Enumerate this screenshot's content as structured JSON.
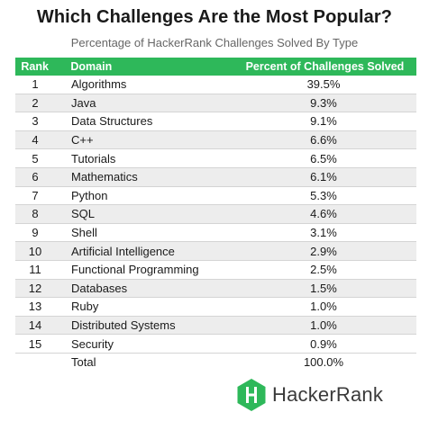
{
  "header": {
    "title": "Which Challenges Are the Most Popular?",
    "subtitle": "Percentage of HackerRank Challenges Solved  By Type"
  },
  "table": {
    "columns": [
      "Rank",
      "Domain",
      "Percent of Challenges Solved"
    ],
    "total_label": "Total",
    "total_value": "100.0%"
  },
  "brand": {
    "name": "HackerRank",
    "logo_color": "#2eb85a"
  },
  "colors": {
    "header_bg": "#2eb85a",
    "alt_row_bg": "#ededed"
  },
  "chart_data": {
    "type": "table",
    "title": "Which Challenges Are the Most Popular?",
    "subtitle": "Percentage of HackerRank Challenges Solved  By Type",
    "columns": [
      "Rank",
      "Domain",
      "Percent of Challenges Solved"
    ],
    "rows": [
      {
        "rank": "1",
        "domain": "Algorithms",
        "percent": "39.5%"
      },
      {
        "rank": "2",
        "domain": "Java",
        "percent": "9.3%"
      },
      {
        "rank": "3",
        "domain": "Data Structures",
        "percent": "9.1%"
      },
      {
        "rank": "4",
        "domain": "C++",
        "percent": "6.6%"
      },
      {
        "rank": "5",
        "domain": "Tutorials",
        "percent": "6.5%"
      },
      {
        "rank": "6",
        "domain": "Mathematics",
        "percent": "6.1%"
      },
      {
        "rank": "7",
        "domain": "Python",
        "percent": "5.3%"
      },
      {
        "rank": "8",
        "domain": "SQL",
        "percent": "4.6%"
      },
      {
        "rank": "9",
        "domain": "Shell",
        "percent": "3.1%"
      },
      {
        "rank": "10",
        "domain": "Artificial Intelligence",
        "percent": "2.9%"
      },
      {
        "rank": "11",
        "domain": "Functional Programming",
        "percent": "2.5%"
      },
      {
        "rank": "12",
        "domain": "Databases",
        "percent": "1.5%"
      },
      {
        "rank": "13",
        "domain": "Ruby",
        "percent": "1.0%"
      },
      {
        "rank": "14",
        "domain": "Distributed Systems",
        "percent": "1.0%"
      },
      {
        "rank": "15",
        "domain": "Security",
        "percent": "0.9%"
      }
    ],
    "total": {
      "label": "Total",
      "percent": "100.0%"
    }
  }
}
